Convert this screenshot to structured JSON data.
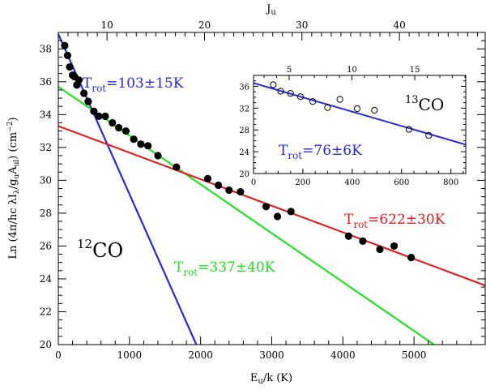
{
  "chart_data": [
    {
      "id": "main",
      "type": "scatter",
      "xlabel": "E_u/k (K)",
      "ylabel": "Ln (4π/hc λI_λ/g_uA_ul) (cm^-2)",
      "top_axis_label": "J_u",
      "xlim": [
        0,
        6000
      ],
      "ylim": [
        20,
        39
      ],
      "x_ticks": [
        0,
        1000,
        2000,
        3000,
        4000,
        5000
      ],
      "y_ticks": [
        20,
        22,
        24,
        26,
        28,
        30,
        32,
        34,
        36,
        38
      ],
      "top_ticks": [
        10,
        20,
        30,
        40
      ],
      "grid": false,
      "points": [
        {
          "x": 90,
          "y": 38.2
        },
        {
          "x": 130,
          "y": 37.6
        },
        {
          "x": 160,
          "y": 36.9
        },
        {
          "x": 200,
          "y": 36.4
        },
        {
          "x": 230,
          "y": 36.3
        },
        {
          "x": 260,
          "y": 35.8
        },
        {
          "x": 290,
          "y": 36.1
        },
        {
          "x": 360,
          "y": 35.3
        },
        {
          "x": 420,
          "y": 34.8
        },
        {
          "x": 500,
          "y": 34.2
        },
        {
          "x": 570,
          "y": 33.9
        },
        {
          "x": 660,
          "y": 33.9
        },
        {
          "x": 760,
          "y": 33.5
        },
        {
          "x": 850,
          "y": 33.2
        },
        {
          "x": 950,
          "y": 33.0
        },
        {
          "x": 1060,
          "y": 32.5
        },
        {
          "x": 1160,
          "y": 32.2
        },
        {
          "x": 1260,
          "y": 32.1
        },
        {
          "x": 1400,
          "y": 31.5
        },
        {
          "x": 1660,
          "y": 30.8
        },
        {
          "x": 2100,
          "y": 30.1
        },
        {
          "x": 2250,
          "y": 29.7
        },
        {
          "x": 2400,
          "y": 29.4
        },
        {
          "x": 2560,
          "y": 29.3
        },
        {
          "x": 2920,
          "y": 28.4
        },
        {
          "x": 3080,
          "y": 27.8
        },
        {
          "x": 3270,
          "y": 28.1
        },
        {
          "x": 4080,
          "y": 26.6
        },
        {
          "x": 4280,
          "y": 26.3
        },
        {
          "x": 4520,
          "y": 25.8
        },
        {
          "x": 4720,
          "y": 26.0
        },
        {
          "x": 4960,
          "y": 25.3
        }
      ],
      "fits": [
        {
          "name": "T_rot=103±15K",
          "sub": "rot",
          "value": "=103±15K",
          "color": "#2a2ad6",
          "x": [
            0,
            1940
          ],
          "y": [
            38.9,
            20.0
          ]
        },
        {
          "name": "T_rot=337±40K",
          "sub": "rot",
          "value": "=337±40K",
          "color": "#22e022",
          "x": [
            0,
            5280
          ],
          "y": [
            35.7,
            20.0
          ]
        },
        {
          "name": "T_rot=622±30K",
          "sub": "rot",
          "value": "=622±30K",
          "color": "#e02020",
          "x": [
            0,
            6000
          ],
          "y": [
            33.3,
            23.6
          ]
        }
      ],
      "annotations": [
        {
          "species": "12CO",
          "superscript": "12",
          "base": "CO"
        }
      ]
    },
    {
      "id": "inset",
      "type": "scatter",
      "xlim": [
        0,
        860
      ],
      "ylim": [
        20,
        38
      ],
      "x_ticks": [
        0,
        200,
        400,
        600,
        800
      ],
      "y_ticks": [
        20,
        24,
        28,
        32,
        36
      ],
      "top_ticks": [
        5,
        10,
        15
      ],
      "marker": "open-circle",
      "points": [
        {
          "x": 80,
          "y": 36.3
        },
        {
          "x": 110,
          "y": 35.1
        },
        {
          "x": 150,
          "y": 34.7
        },
        {
          "x": 190,
          "y": 34.1
        },
        {
          "x": 240,
          "y": 33.2
        },
        {
          "x": 300,
          "y": 32.1
        },
        {
          "x": 350,
          "y": 33.6
        },
        {
          "x": 420,
          "y": 31.9
        },
        {
          "x": 490,
          "y": 31.6
        },
        {
          "x": 630,
          "y": 28.1
        },
        {
          "x": 710,
          "y": 27.0
        }
      ],
      "fits": [
        {
          "name": "T_rot=76±6K",
          "sub": "rot",
          "value": "=76±6K",
          "color": "#2a2ad6",
          "x": [
            0,
            860
          ],
          "y": [
            36.6,
            25.3
          ]
        }
      ],
      "annotations": [
        {
          "species": "13CO",
          "superscript": "13",
          "base": "CO"
        }
      ]
    }
  ]
}
